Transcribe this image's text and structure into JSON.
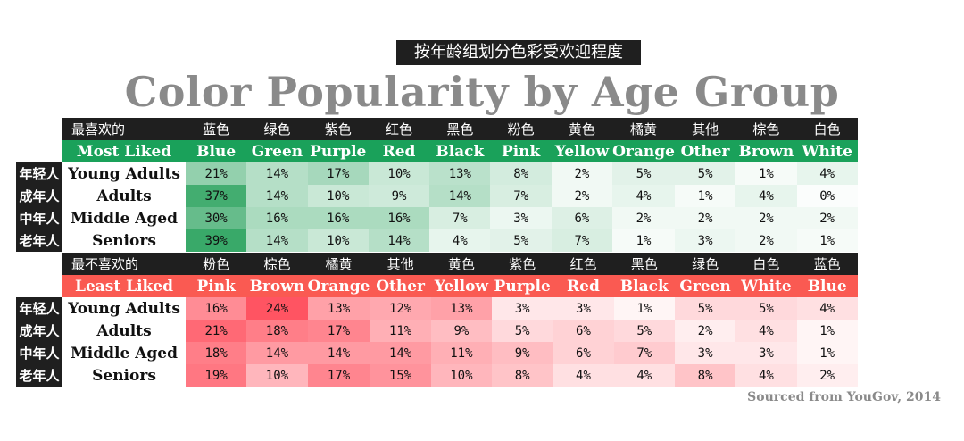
{
  "title_zh": "按年龄组划分色彩受欢迎程度",
  "title": "Color Popularity by Age Group",
  "source": "Sourced from YouGov, 2014",
  "age_groups": [
    {
      "zh": "年轻人",
      "en": "Young Adults"
    },
    {
      "zh": "成年人",
      "en": "Adults"
    },
    {
      "zh": "中年人",
      "en": "Middle Aged"
    },
    {
      "zh": "老年人",
      "en": "Seniors"
    }
  ],
  "colors": {
    "liked_header": "#1aa15a",
    "disliked_header": "#fa5a52",
    "liked_cell": "#33a664",
    "disliked_cell": "#ff4f5d",
    "dark": "#1f1f1f",
    "title_gray": "#8a8a8a"
  },
  "chart_data": [
    {
      "type": "heatmap",
      "section_zh": "最喜欢的",
      "section_en": "Most Liked",
      "categories_zh": [
        "蓝色",
        "绿色",
        "紫色",
        "红色",
        "黑色",
        "粉色",
        "黄色",
        "橘黄",
        "其他",
        "棕色",
        "白色"
      ],
      "categories": [
        "Blue",
        "Green",
        "Purple",
        "Red",
        "Black",
        "Pink",
        "Yellow",
        "Orange",
        "Other",
        "Brown",
        "White"
      ],
      "rows": [
        "Young Adults",
        "Adults",
        "Middle Aged",
        "Seniors"
      ],
      "values": [
        [
          21,
          14,
          17,
          10,
          13,
          8,
          2,
          5,
          5,
          1,
          4
        ],
        [
          37,
          14,
          10,
          9,
          14,
          7,
          2,
          4,
          1,
          4,
          0
        ],
        [
          30,
          16,
          16,
          16,
          7,
          3,
          6,
          2,
          2,
          2,
          2
        ],
        [
          39,
          14,
          10,
          14,
          4,
          5,
          7,
          1,
          3,
          2,
          1
        ]
      ],
      "unit": "%"
    },
    {
      "type": "heatmap",
      "section_zh": "最不喜欢的",
      "section_en": "Least Liked",
      "categories_zh": [
        "粉色",
        "棕色",
        "橘黄",
        "其他",
        "黄色",
        "紫色",
        "红色",
        "黑色",
        "绿色",
        "白色",
        "蓝色"
      ],
      "categories": [
        "Pink",
        "Brown",
        "Orange",
        "Other",
        "Yellow",
        "Purple",
        "Red",
        "Black",
        "Green",
        "White",
        "Blue"
      ],
      "rows": [
        "Young Adults",
        "Adults",
        "Middle Aged",
        "Seniors"
      ],
      "values": [
        [
          16,
          24,
          13,
          12,
          13,
          3,
          3,
          1,
          5,
          5,
          4
        ],
        [
          21,
          18,
          17,
          11,
          9,
          5,
          6,
          5,
          2,
          4,
          1
        ],
        [
          18,
          14,
          14,
          14,
          11,
          9,
          6,
          7,
          3,
          3,
          1
        ],
        [
          19,
          10,
          17,
          15,
          10,
          8,
          4,
          4,
          8,
          4,
          2
        ]
      ],
      "unit": "%"
    }
  ]
}
